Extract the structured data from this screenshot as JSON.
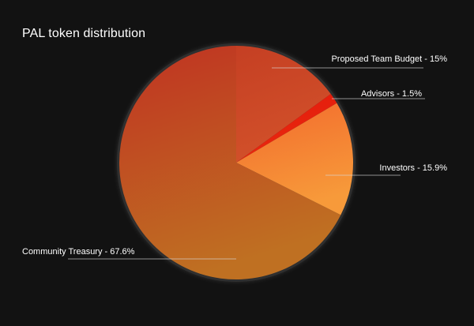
{
  "chart_data": {
    "type": "pie",
    "title": "PAL token distribution",
    "series": [
      {
        "name": "Proposed Team Budget",
        "value": 15,
        "label": "Proposed Team Budget - 15%",
        "colors": [
          "#c53f23",
          "#d2512a"
        ]
      },
      {
        "name": "Advisors",
        "value": 1.5,
        "label": "Advisors - 1.5%",
        "colors": [
          "#e51b0c",
          "#e8280e"
        ]
      },
      {
        "name": "Investors",
        "value": 15.9,
        "label": "Investors - 15.9%",
        "colors": [
          "#f26a2d",
          "#f79a3a"
        ]
      },
      {
        "name": "Community Treasury",
        "value": 67.6,
        "label": "Community Treasury - 67.6%",
        "colors": [
          "#c03222",
          "#bf7022"
        ]
      }
    ],
    "start_angle_deg": 0,
    "direction": "clockwise",
    "legend": "none",
    "background": "#121212"
  }
}
